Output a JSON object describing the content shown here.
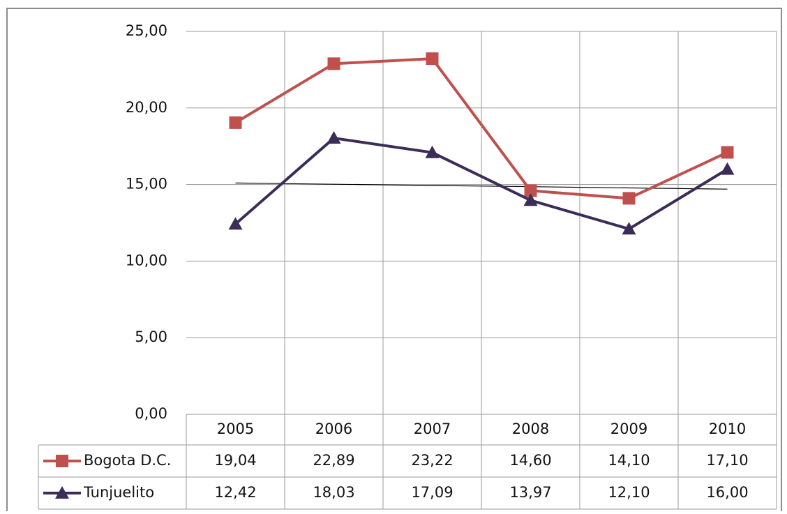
{
  "chart_data": {
    "type": "line",
    "categories": [
      "2005",
      "2006",
      "2007",
      "2008",
      "2009",
      "2010"
    ],
    "series": [
      {
        "name": "Bogota D.C.",
        "color": "#c0504d",
        "marker": "square",
        "values": [
          19.04,
          22.89,
          23.22,
          14.6,
          14.1,
          17.1
        ],
        "value_labels": [
          "19,04",
          "22,89",
          "23,22",
          "14,60",
          "14,10",
          "17,10"
        ]
      },
      {
        "name": "Tunjuelito",
        "color": "#3b2d58",
        "marker": "triangle",
        "values": [
          12.42,
          18.03,
          17.09,
          13.97,
          12.1,
          16.0
        ],
        "value_labels": [
          "12,42",
          "18,03",
          "17,09",
          "13,97",
          "12,10",
          "16,00"
        ]
      }
    ],
    "trendline": {
      "color": "#000000",
      "values": [
        15.1,
        14.7
      ]
    },
    "ylim": [
      0,
      25
    ],
    "yticks": [
      {
        "value": 0,
        "label": "0,00"
      },
      {
        "value": 5,
        "label": "5,00"
      },
      {
        "value": 10,
        "label": "10,00"
      },
      {
        "value": 15,
        "label": "15,00"
      },
      {
        "value": 20,
        "label": "20,00"
      },
      {
        "value": 25,
        "label": "25,00"
      }
    ],
    "grid": true,
    "data_table": true
  }
}
